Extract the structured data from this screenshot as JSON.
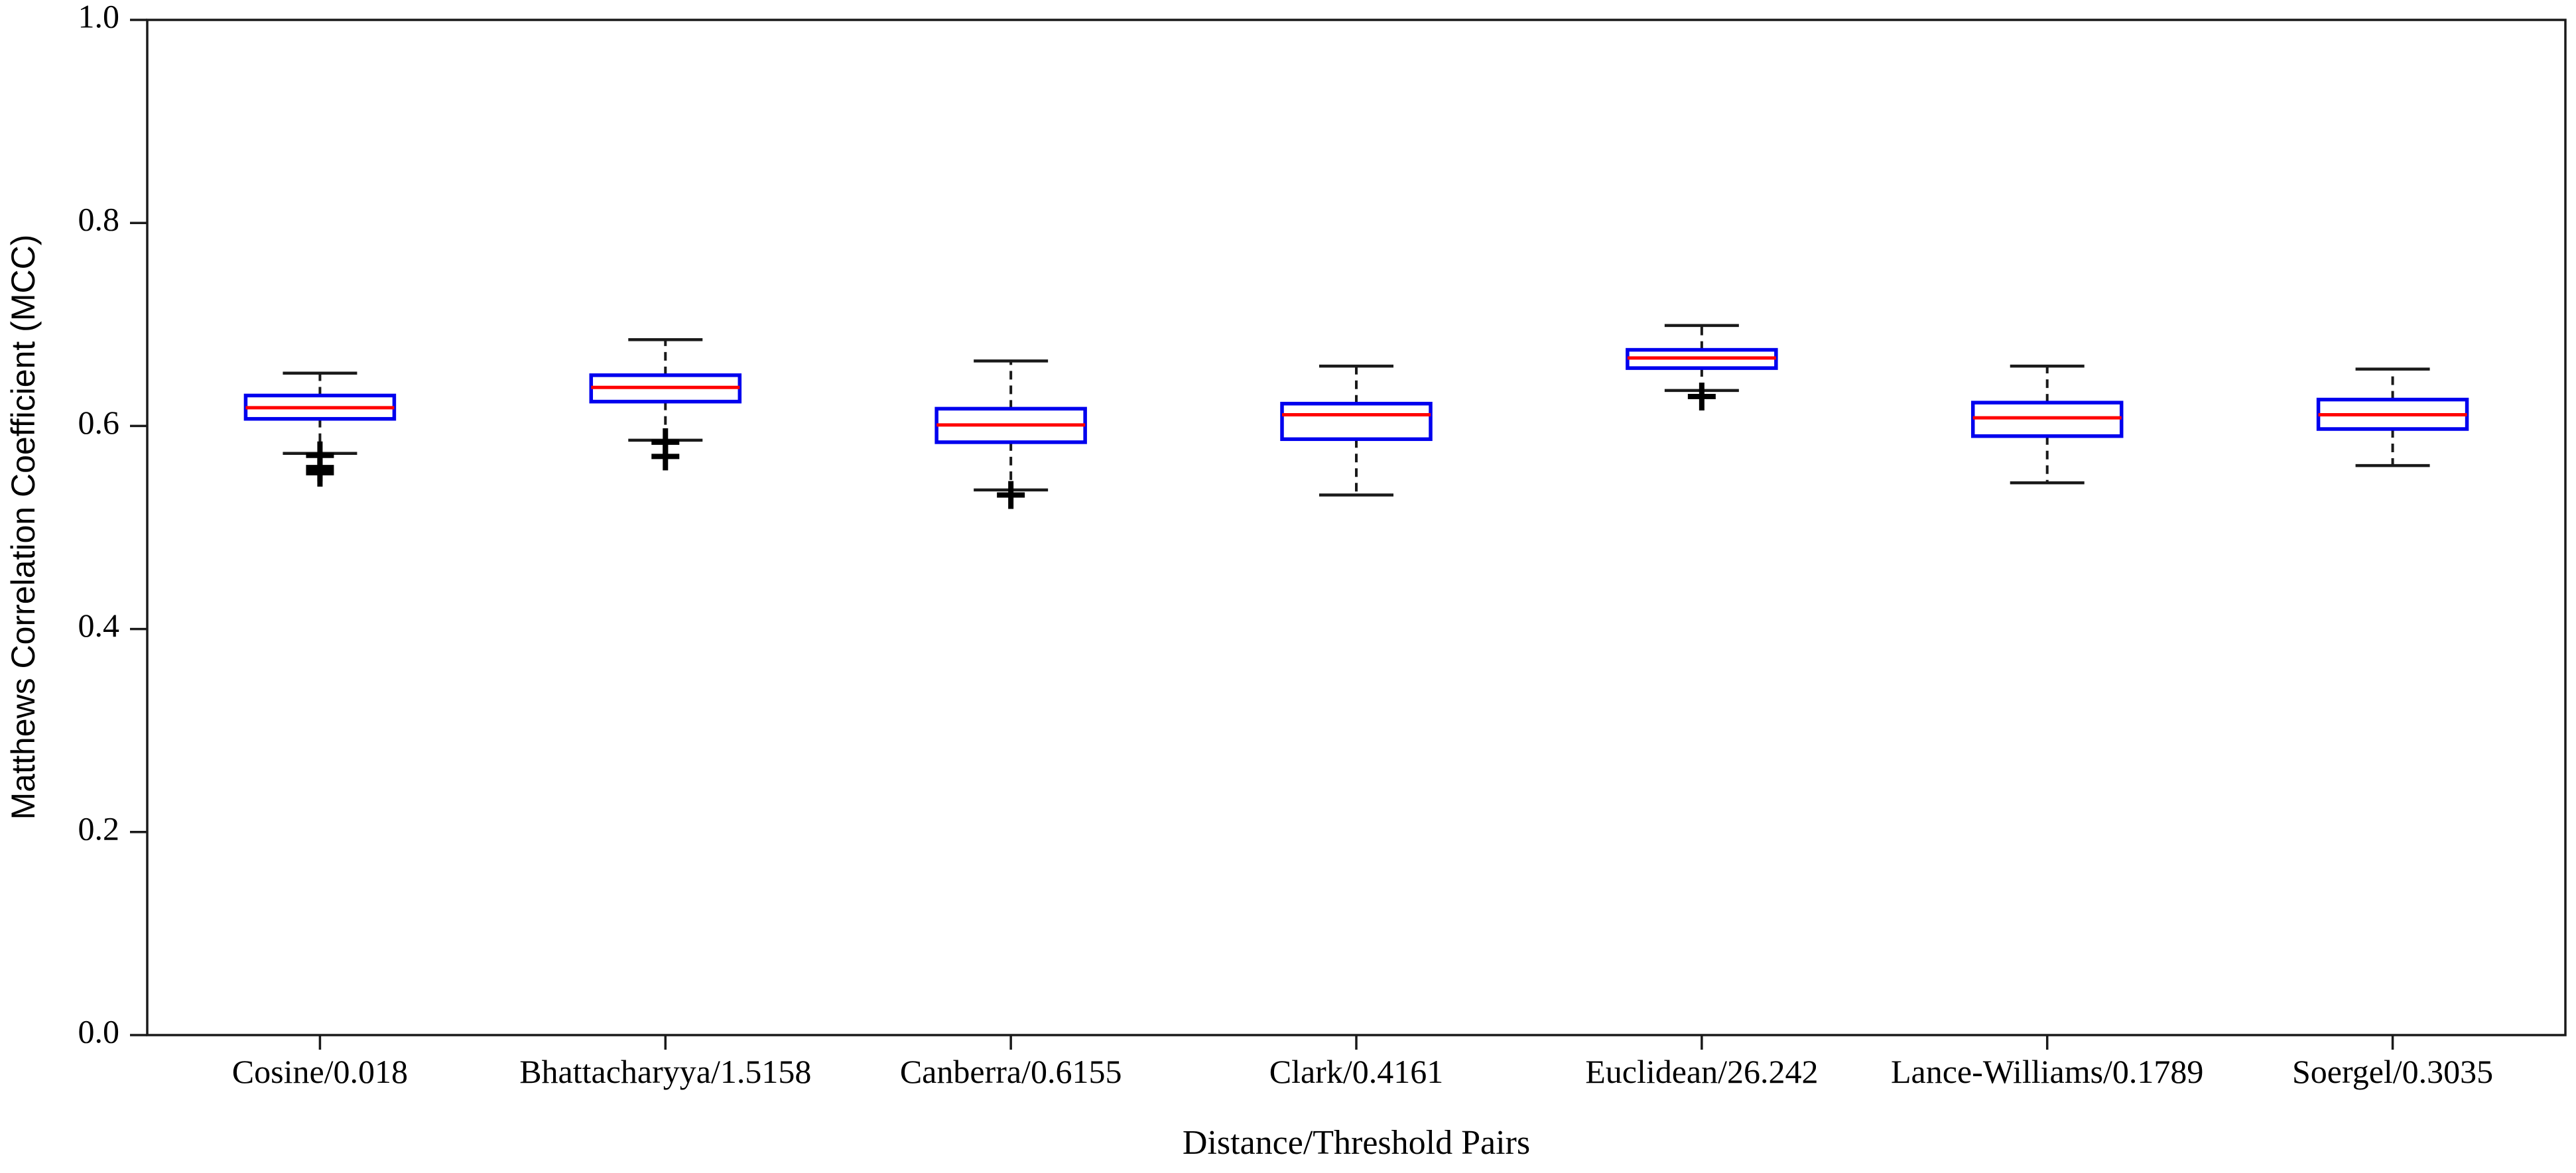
{
  "chart_data": {
    "type": "boxplot",
    "title": "",
    "xlabel": "Distance/Threshold Pairs",
    "ylabel": "Matthews Correlation Coefficient (MCC)",
    "ylim": [
      0.0,
      1.0
    ],
    "yticks": [
      0.0,
      0.2,
      0.4,
      0.6,
      0.8,
      1.0
    ],
    "ytick_labels": [
      "0.0",
      "0.2",
      "0.4",
      "0.6",
      "0.8",
      "1.0"
    ],
    "grid": false,
    "legend_position": "none",
    "categories": [
      "Cosine/0.018",
      "Bhattacharyya/1.5158",
      "Canberra/0.6155",
      "Clark/0.4161",
      "Euclidean/26.242",
      "Lance-Williams/0.1789",
      "Soergel/0.3035"
    ],
    "series": [
      {
        "name": "Cosine/0.018",
        "whislo": 0.573,
        "q1": 0.607,
        "med": 0.618,
        "q3": 0.63,
        "whishi": 0.652,
        "fliers": [
          0.571,
          0.559,
          0.554
        ]
      },
      {
        "name": "Bhattacharyya/1.5158",
        "whislo": 0.586,
        "q1": 0.624,
        "med": 0.638,
        "q3": 0.65,
        "whishi": 0.685,
        "fliers": [
          0.584,
          0.57
        ]
      },
      {
        "name": "Canberra/0.6155",
        "whislo": 0.537,
        "q1": 0.584,
        "med": 0.601,
        "q3": 0.617,
        "whishi": 0.664,
        "fliers": [
          0.532
        ]
      },
      {
        "name": "Clark/0.4161",
        "whislo": 0.532,
        "q1": 0.587,
        "med": 0.611,
        "q3": 0.622,
        "whishi": 0.659,
        "fliers": []
      },
      {
        "name": "Euclidean/26.242",
        "whislo": 0.635,
        "q1": 0.657,
        "med": 0.667,
        "q3": 0.675,
        "whishi": 0.699,
        "fliers": [
          0.629
        ]
      },
      {
        "name": "Lance-Williams/0.1789",
        "whislo": 0.544,
        "q1": 0.59,
        "med": 0.608,
        "q3": 0.623,
        "whishi": 0.659,
        "fliers": []
      },
      {
        "name": "Soergel/0.3035",
        "whislo": 0.561,
        "q1": 0.597,
        "med": 0.611,
        "q3": 0.626,
        "whishi": 0.656,
        "fliers": []
      }
    ],
    "colors": {
      "box": "#0000ee",
      "median": "#ff0000",
      "whisker": "#1a1a1a",
      "cap": "#1a1a1a",
      "flier": "#000000",
      "spine": "#1a1a1a",
      "text": "#000000",
      "background": "#ffffff"
    }
  }
}
